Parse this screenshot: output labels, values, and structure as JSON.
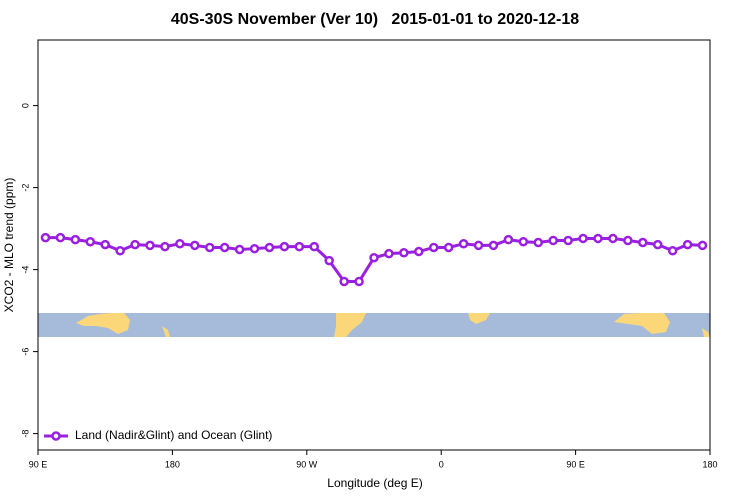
{
  "chart_data": {
    "type": "line",
    "title": "40S-30S November (Ver 10)   2015-01-01 to 2020-12-18",
    "x_label": "Longitude (deg E)",
    "y_label": "XCO2 - MLO trend (ppm)",
    "x": [
      95,
      105,
      115,
      125,
      135,
      145,
      155,
      165,
      175,
      185,
      195,
      205,
      215,
      225,
      235,
      245,
      255,
      265,
      275,
      285,
      295,
      305,
      315,
      325,
      335,
      345,
      355,
      365,
      375,
      385,
      395,
      405,
      415,
      425,
      435,
      445,
      455,
      465,
      475,
      485,
      495,
      505,
      515,
      525,
      535
    ],
    "series": [
      {
        "name": "Land (Nadir&Glint) and Ocean (Glint)",
        "color": "#9b1fe0",
        "values": [
          -3.22,
          -3.22,
          -3.27,
          -3.32,
          -3.39,
          -3.54,
          -3.39,
          -3.41,
          -3.44,
          -3.37,
          -3.41,
          -3.46,
          -3.46,
          -3.51,
          -3.49,
          -3.46,
          -3.44,
          -3.44,
          -3.44,
          -3.78,
          -4.29,
          -4.29,
          -3.71,
          -3.61,
          -3.59,
          -3.56,
          -3.46,
          -3.46,
          -3.37,
          -3.41,
          -3.41,
          -3.27,
          -3.32,
          -3.34,
          -3.29,
          -3.29,
          -3.24,
          -3.24,
          -3.24,
          -3.29,
          -3.34,
          -3.39,
          -3.54,
          -3.39,
          -3.41
        ]
      }
    ],
    "xlim": [
      90,
      540
    ],
    "xticks": [
      {
        "value": 90,
        "label": "90 E"
      },
      {
        "value": 180,
        "label": "180"
      },
      {
        "value": 270,
        "label": "90 W"
      },
      {
        "value": 360,
        "label": "0"
      },
      {
        "value": 450,
        "label": "90 E"
      },
      {
        "value": 540,
        "label": "180"
      }
    ],
    "ylim": [
      -8.4,
      1.6
    ],
    "yticks": [
      0,
      -2,
      -4,
      -6,
      -8
    ],
    "legend": "bottom-left"
  }
}
